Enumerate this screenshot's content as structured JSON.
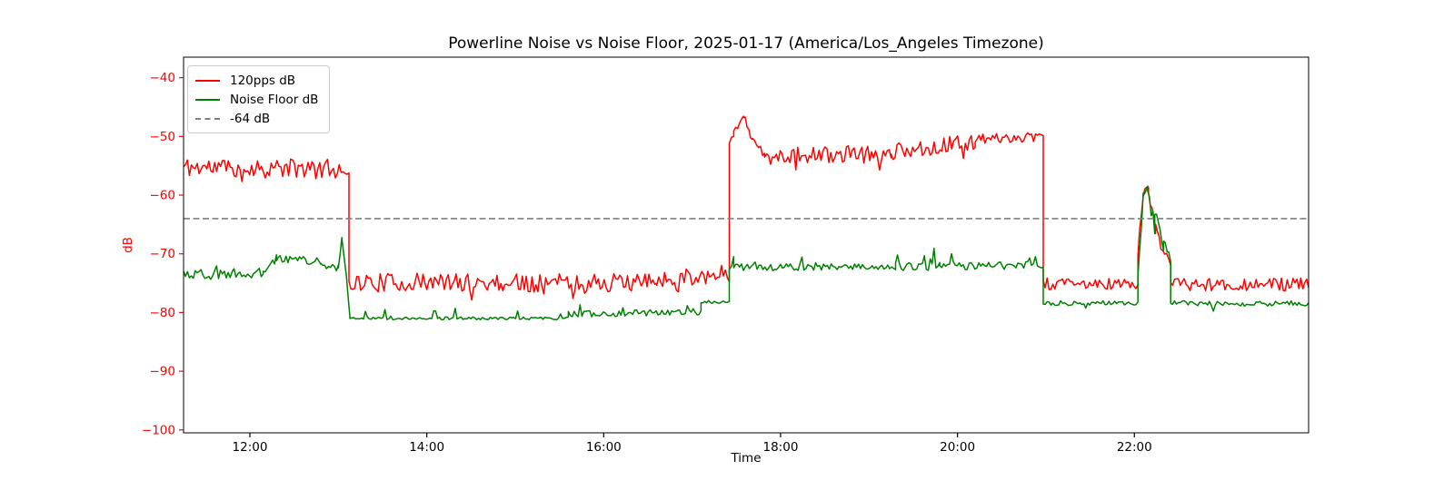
{
  "chart_data": {
    "type": "line",
    "title": "Powerline Noise vs Noise Floor, 2025-01-17 (America/Los_Angeles Timezone)",
    "xlabel": "Time",
    "ylabel": "dB",
    "grid": false,
    "legend_position": "upper-left",
    "xlim_hours": [
      11.25,
      23.97
    ],
    "ylim": [
      -100.5,
      -36.5
    ],
    "x_ticks": [
      {
        "hour": 12,
        "label": "12:00"
      },
      {
        "hour": 14,
        "label": "14:00"
      },
      {
        "hour": 16,
        "label": "16:00"
      },
      {
        "hour": 18,
        "label": "18:00"
      },
      {
        "hour": 20,
        "label": "20:00"
      },
      {
        "hour": 22,
        "label": "22:00"
      }
    ],
    "y_ticks": [
      {
        "value": -40,
        "label": "−40"
      },
      {
        "value": -50,
        "label": "−50"
      },
      {
        "value": -60,
        "label": "−60"
      },
      {
        "value": -70,
        "label": "−70"
      },
      {
        "value": -80,
        "label": "−80"
      },
      {
        "value": -90,
        "label": "−90"
      },
      {
        "value": -100,
        "label": "−100"
      }
    ],
    "axis_style": {
      "y_tick_color": "#ff0000",
      "x_tick_color": "#000000",
      "spine_color": "#000000"
    },
    "threshold": {
      "value": -64,
      "label": "-64 dB",
      "color": "#7f7f7f",
      "style": "dashed"
    },
    "legend": {
      "entries": [
        {
          "label": "120pps dB",
          "color": "#ff0000",
          "dash": false
        },
        {
          "label": "Noise Floor dB",
          "color": "#008000",
          "dash": false
        },
        {
          "label": "-64 dB",
          "color": "#7f7f7f",
          "dash": true
        }
      ]
    },
    "sample_step_hours": 0.022,
    "noise_seed": 11,
    "segments_format": [
      "t_start_h",
      "t_end_h",
      "dB_start",
      "dB_end",
      "noise_amp_dB",
      "spike_prob",
      "spike_amp_dB"
    ],
    "series": [
      {
        "name": "120pps dB",
        "color": "#ff0000",
        "segments": [
          [
            11.25,
            13.12,
            -55.2,
            -55.6,
            1.7,
            0.05,
            -2.5
          ],
          [
            13.12,
            16.6,
            -74.9,
            -74.9,
            1.6,
            0.05,
            -2.0
          ],
          [
            16.6,
            17.42,
            -74.3,
            -73.3,
            1.5,
            0.05,
            -2.0
          ],
          [
            17.42,
            17.47,
            -50.8,
            -49.8,
            0.7,
            0,
            0
          ],
          [
            17.47,
            17.58,
            -49.5,
            -46.3,
            0.6,
            0,
            0
          ],
          [
            17.58,
            17.68,
            -46.3,
            -50.5,
            0.7,
            0,
            0
          ],
          [
            17.68,
            17.82,
            -50.5,
            -53.2,
            0.7,
            0,
            0
          ],
          [
            17.82,
            19.25,
            -53.3,
            -53.0,
            1.5,
            0.06,
            -2.5
          ],
          [
            19.25,
            20.2,
            -52.6,
            -50.9,
            1.4,
            0.06,
            -2.5
          ],
          [
            20.2,
            20.97,
            -50.4,
            -50.1,
            0.8,
            0.06,
            -2.5
          ],
          [
            20.97,
            22.04,
            -75.2,
            -75.2,
            1.1,
            0,
            0
          ],
          [
            22.04,
            22.1,
            -70.0,
            -59.8,
            0.8,
            0,
            0
          ],
          [
            22.1,
            22.16,
            -59.8,
            -58.4,
            0.6,
            0,
            0
          ],
          [
            22.16,
            22.24,
            -59.5,
            -66.5,
            1.2,
            0,
            0
          ],
          [
            22.24,
            22.32,
            -64.5,
            -69.5,
            1.3,
            0,
            0
          ],
          [
            22.32,
            22.41,
            -68.5,
            -71.5,
            1.0,
            0,
            0
          ],
          [
            22.41,
            23.97,
            -75.2,
            -75.2,
            1.1,
            0,
            0
          ]
        ]
      },
      {
        "name": "Noise Floor dB",
        "color": "#008000",
        "segments": [
          [
            11.25,
            12.15,
            -73.6,
            -73.3,
            0.9,
            0.04,
            1.5
          ],
          [
            12.15,
            12.3,
            -72.8,
            -70.8,
            0.7,
            0,
            0
          ],
          [
            12.3,
            12.8,
            -70.6,
            -71.4,
            0.7,
            0.05,
            1.2
          ],
          [
            12.8,
            13.0,
            -72.0,
            -72.4,
            0.6,
            0,
            0
          ],
          [
            13.0,
            13.04,
            -72.4,
            -67.3,
            0.2,
            0,
            0
          ],
          [
            13.04,
            13.09,
            -67.3,
            -73.5,
            0.3,
            0,
            0
          ],
          [
            13.09,
            13.13,
            -73.5,
            -80.8,
            0.15,
            0,
            0
          ],
          [
            13.13,
            15.6,
            -81.0,
            -81.0,
            0.25,
            0.07,
            1.6
          ],
          [
            15.6,
            17.1,
            -80.3,
            -79.8,
            0.6,
            0.08,
            1.5
          ],
          [
            17.1,
            17.42,
            -78.2,
            -78.2,
            0.3,
            0,
            0
          ],
          [
            17.42,
            17.47,
            -72.5,
            -70.8,
            0.5,
            0,
            0
          ],
          [
            17.47,
            19.3,
            -72.3,
            -72.2,
            0.6,
            0.05,
            1.8
          ],
          [
            19.3,
            19.8,
            -72.2,
            -72.2,
            0.7,
            0.12,
            4.2
          ],
          [
            19.8,
            20.97,
            -72.1,
            -71.9,
            0.7,
            0.06,
            2.2
          ],
          [
            20.97,
            22.04,
            -78.4,
            -78.4,
            0.4,
            0.04,
            -1.0
          ],
          [
            22.04,
            22.1,
            -74.0,
            -60.0,
            0.7,
            0,
            0
          ],
          [
            22.1,
            22.15,
            -60.0,
            -58.8,
            0.4,
            0,
            0
          ],
          [
            22.15,
            22.23,
            -59.3,
            -65.5,
            1.3,
            0,
            0
          ],
          [
            22.23,
            22.33,
            -63.5,
            -69.0,
            1.5,
            0,
            0
          ],
          [
            22.33,
            22.41,
            -67.5,
            -71.0,
            1.2,
            0,
            0
          ],
          [
            22.41,
            23.97,
            -78.5,
            -78.5,
            0.5,
            0.05,
            -1.6
          ]
        ]
      }
    ],
    "key_events": [
      "120pps holds around -55 dB from 11:15 until ~13:07, then drops sharply to ~-75 dB",
      "Noise floor rises briefly to ~-67 dB at ~13:03, then falls to a flat ~-81 dB floor",
      "At ~17:25 120pps jumps above the -64 dB threshold, peaking near -46 dB at ~17:35, settling ~-53 dB and drifting up to ~-50 dB by 21:00",
      "Noise floor sits near -72 dB from 17:25 to 21:00 with spikes to ~-67 dB near 19:30-19:45",
      "At ~20:57 120pps drops back to ~-75 dB and noise floor to ~-78.5 dB",
      "Both traces spike together to ~-59 dB (crossing -64 dB) between ~22:05 and ~22:25, then return to ~-75 / -78.5 dB until midnight"
    ]
  }
}
